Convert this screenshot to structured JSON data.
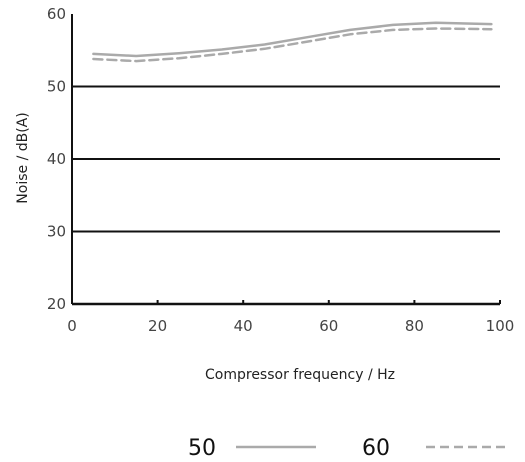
{
  "chart_data": {
    "type": "line",
    "title": "",
    "xlabel": "Compressor frequency / Hz",
    "ylabel": "Noise / dB(A)",
    "xlim": [
      0,
      100
    ],
    "ylim": [
      20,
      60
    ],
    "x_ticks": [
      0,
      20,
      40,
      60,
      80,
      100
    ],
    "y_ticks": [
      20,
      30,
      40,
      50,
      60
    ],
    "grid": "horizontal",
    "legend_position": "bottom",
    "series": [
      {
        "name": "50",
        "style": "solid",
        "color": "#aaaaaa",
        "x": [
          5,
          15,
          25,
          35,
          45,
          55,
          65,
          75,
          85,
          98
        ],
        "y": [
          54.5,
          54.2,
          54.6,
          55.1,
          55.8,
          56.8,
          57.8,
          58.5,
          58.8,
          58.6
        ]
      },
      {
        "name": "60",
        "style": "dashed",
        "color": "#aaaaaa",
        "x": [
          5,
          15,
          25,
          35,
          45,
          55,
          65,
          75,
          85,
          98
        ],
        "y": [
          53.8,
          53.5,
          53.9,
          54.5,
          55.2,
          56.2,
          57.2,
          57.8,
          58.0,
          57.9
        ]
      }
    ]
  }
}
